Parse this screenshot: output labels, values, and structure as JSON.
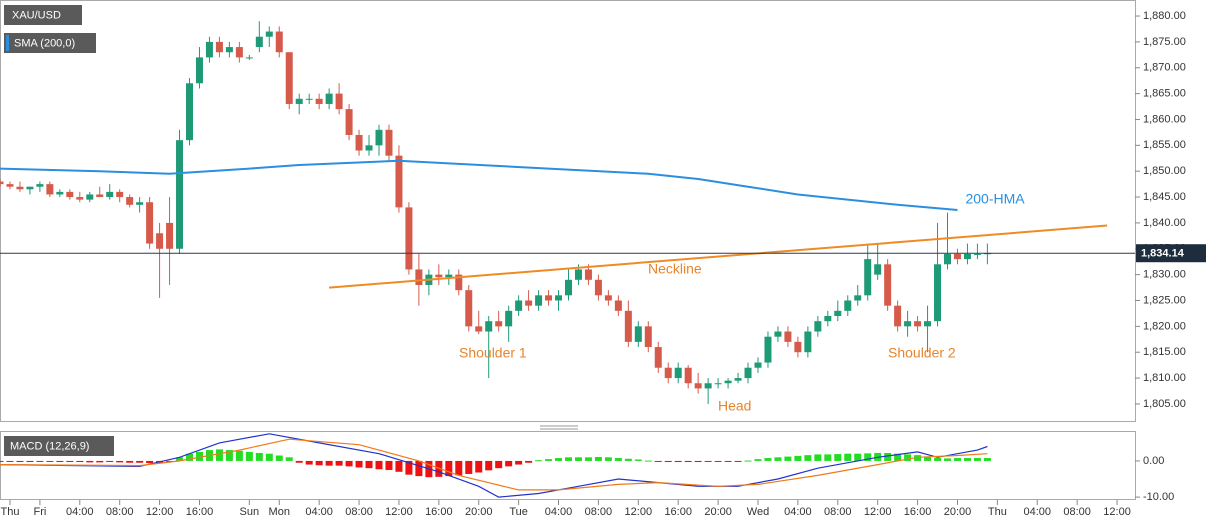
{
  "chart_data": [
    {
      "type": "candlestick",
      "title": "XAU/USD",
      "x": [
        0,
        1,
        2,
        3,
        4,
        5,
        6,
        7,
        8,
        9,
        10,
        11,
        12,
        13,
        14,
        15,
        16,
        17,
        18,
        19,
        20,
        21,
        22,
        23,
        24,
        25,
        26,
        27,
        28,
        29,
        30,
        31,
        32,
        33,
        34,
        35,
        36,
        37,
        38,
        39,
        40,
        41,
        42,
        43,
        44,
        45,
        46,
        47,
        48,
        49,
        50,
        51,
        52,
        53,
        54,
        55,
        56,
        57,
        58,
        59,
        60,
        61,
        62,
        63,
        64,
        65,
        66,
        67,
        68,
        69,
        70,
        71,
        72,
        73,
        74,
        75,
        76,
        77,
        78,
        79,
        80,
        81,
        82,
        83,
        84,
        85,
        86,
        87,
        88,
        89,
        90,
        91,
        92,
        93,
        94,
        95,
        96,
        97,
        98,
        99
      ],
      "open": [
        1848,
        1847.5,
        1847,
        1846.5,
        1847,
        1847.5,
        1845.5,
        1846,
        1845,
        1844.5,
        1845.5,
        1845,
        1846,
        1845,
        1843.5,
        1844,
        1838,
        1840,
        1835,
        1856,
        1867,
        1872,
        1875,
        1873,
        1874,
        1872,
        1874,
        1876,
        1877,
        1873,
        1863,
        1864,
        1864,
        1863,
        1865,
        1862,
        1857,
        1854,
        1855,
        1858,
        1853,
        1843,
        1831,
        1828,
        1830,
        1829.5,
        1830,
        1827,
        1820,
        1819,
        1821,
        1820,
        1823,
        1825,
        1824,
        1826,
        1825,
        1826,
        1829,
        1831,
        1829,
        1826,
        1825,
        1823,
        1817,
        1820,
        1816,
        1812,
        1810,
        1812,
        1809,
        1808,
        1809,
        1809,
        1809.5,
        1810,
        1812,
        1813,
        1818,
        1819,
        1817,
        1815,
        1819,
        1821,
        1822,
        1823,
        1825,
        1826,
        1830,
        1832,
        1824,
        1820,
        1821,
        1820,
        1821,
        1832,
        1834,
        1833,
        1834,
        1834
      ],
      "high": [
        1848.5,
        1848,
        1848,
        1847,
        1848,
        1848,
        1846.5,
        1846.5,
        1846,
        1846,
        1847,
        1847.5,
        1846.5,
        1845.5,
        1845,
        1845,
        1840,
        1845,
        1858,
        1868,
        1874,
        1876,
        1876,
        1875,
        1875,
        1872.5,
        1879,
        1878,
        1878,
        1873,
        1865,
        1865,
        1865,
        1866,
        1867,
        1863,
        1858,
        1857,
        1859,
        1859,
        1855,
        1844,
        1834,
        1831,
        1832,
        1831,
        1831,
        1828,
        1823,
        1822,
        1823,
        1824,
        1826,
        1827,
        1827,
        1827,
        1827,
        1831,
        1832,
        1832,
        1830,
        1827,
        1826,
        1825,
        1821,
        1821,
        1817,
        1813,
        1813,
        1812.5,
        1811,
        1810,
        1810,
        1810,
        1811,
        1813,
        1814,
        1819,
        1820,
        1820,
        1818,
        1820,
        1822,
        1823,
        1825,
        1826,
        1828,
        1836,
        1836,
        1833,
        1825,
        1823,
        1822,
        1824,
        1840,
        1842,
        1835,
        1836,
        1836,
        1836
      ],
      "low": [
        1847,
        1846.5,
        1846,
        1845.5,
        1846,
        1845,
        1845,
        1844.5,
        1844,
        1844,
        1845,
        1844.5,
        1844,
        1843,
        1842,
        1835,
        1825.5,
        1828,
        1834,
        1855,
        1866,
        1871,
        1872,
        1872,
        1871,
        1871.5,
        1873,
        1874,
        1872,
        1862,
        1861,
        1863,
        1862,
        1862,
        1861,
        1856,
        1853,
        1853,
        1853,
        1852,
        1842,
        1830,
        1824,
        1826,
        1828,
        1828,
        1826,
        1819,
        1818.5,
        1810,
        1819,
        1817,
        1822,
        1823,
        1823,
        1824,
        1823,
        1825,
        1828,
        1828,
        1825,
        1824,
        1822,
        1816,
        1816,
        1815,
        1811,
        1809,
        1809,
        1808,
        1807,
        1805,
        1808,
        1808,
        1809,
        1809,
        1811,
        1812,
        1817,
        1816,
        1814,
        1814,
        1818,
        1820,
        1821,
        1822,
        1824,
        1825,
        1829,
        1823,
        1819,
        1818,
        1819,
        1815,
        1820,
        1831,
        1832,
        1832,
        1833,
        1832
      ],
      "close": [
        1847.5,
        1847,
        1846.5,
        1847,
        1847.5,
        1845.5,
        1846,
        1845,
        1844.5,
        1845.5,
        1845,
        1846,
        1845,
        1843.5,
        1844,
        1836,
        1835,
        1835,
        1856,
        1867,
        1872,
        1875,
        1873,
        1874,
        1872,
        1872,
        1876,
        1877,
        1873,
        1863,
        1864,
        1864,
        1863,
        1865,
        1862,
        1857,
        1854,
        1855,
        1858,
        1853,
        1843,
        1831,
        1828,
        1830,
        1829.5,
        1830,
        1827,
        1820,
        1819,
        1821,
        1820,
        1823,
        1825,
        1824,
        1826,
        1825,
        1826,
        1829,
        1831,
        1829,
        1826,
        1825,
        1823,
        1817,
        1820,
        1816,
        1812,
        1810,
        1812,
        1809,
        1808,
        1809,
        1809,
        1809.5,
        1810,
        1812,
        1813,
        1818,
        1819,
        1817,
        1815,
        1819,
        1821,
        1822,
        1823,
        1825,
        1826,
        1833,
        1832,
        1824,
        1820,
        1821,
        1820,
        1821,
        1832,
        1834,
        1833,
        1834,
        1834,
        1834.14
      ],
      "up_color": "#1f9a76",
      "down_color": "#d65a4a",
      "last_price_label": "1,834.14",
      "xlim": [
        0,
        113.8
      ],
      "ylim": [
        1801.7,
        1883.1
      ],
      "yticks": [
        {
          "value": 1805,
          "label": "1,805.00"
        },
        {
          "value": 1810,
          "label": "1,810.00"
        },
        {
          "value": 1815,
          "label": "1,815.00"
        },
        {
          "value": 1820,
          "label": "1,820.00"
        },
        {
          "value": 1825,
          "label": "1,825.00"
        },
        {
          "value": 1830,
          "label": "1,830.00"
        },
        {
          "value": 1835,
          "label": "1,835.00"
        },
        {
          "value": 1840,
          "label": "1,840.00"
        },
        {
          "value": 1845,
          "label": "1,845.00"
        },
        {
          "value": 1850,
          "label": "1,850.00"
        },
        {
          "value": 1855,
          "label": "1,855.00"
        },
        {
          "value": 1860,
          "label": "1,860.00"
        },
        {
          "value": 1865,
          "label": "1,865.00"
        },
        {
          "value": 1870,
          "label": "1,870.00"
        },
        {
          "value": 1875,
          "label": "1,875.00"
        },
        {
          "value": 1880,
          "label": "1,880.00"
        }
      ],
      "xticks": [
        {
          "value": 1,
          "label": "Thu"
        },
        {
          "value": 4,
          "label": "Fri"
        },
        {
          "value": 8,
          "label": "04:00"
        },
        {
          "value": 12,
          "label": "08:00"
        },
        {
          "value": 16,
          "label": "12:00"
        },
        {
          "value": 20,
          "label": "16:00"
        },
        {
          "value": 25,
          "label": "Sun"
        },
        {
          "value": 28,
          "label": "Mon"
        },
        {
          "value": 32,
          "label": "04:00"
        },
        {
          "value": 36,
          "label": "08:00"
        },
        {
          "value": 40,
          "label": "12:00"
        },
        {
          "value": 44,
          "label": "16:00"
        },
        {
          "value": 48,
          "label": "20:00"
        },
        {
          "value": 52,
          "label": "Tue"
        },
        {
          "value": 56,
          "label": "04:00"
        },
        {
          "value": 60,
          "label": "08:00"
        },
        {
          "value": 64,
          "label": "12:00"
        },
        {
          "value": 68,
          "label": "16:00"
        },
        {
          "value": 72,
          "label": "20:00"
        },
        {
          "value": 76,
          "label": "Wed"
        },
        {
          "value": 80,
          "label": "04:00"
        },
        {
          "value": 84,
          "label": "08:00"
        },
        {
          "value": 88,
          "label": "12:00"
        },
        {
          "value": 92,
          "label": "16:00"
        },
        {
          "value": 96,
          "label": "20:00"
        },
        {
          "value": 100,
          "label": "Thu"
        },
        {
          "value": 104,
          "label": "04:00"
        },
        {
          "value": 108,
          "label": "08:00"
        },
        {
          "value": 112,
          "label": "12:00"
        }
      ],
      "series": [
        {
          "name": "SMA (200,0)",
          "label": "200-HMA",
          "color": "#2a8fe0",
          "x": [
            0,
            10,
            17,
            25,
            30,
            40,
            45,
            55,
            65,
            70,
            75,
            80,
            90,
            96
          ],
          "values": [
            1850.5,
            1850,
            1849.5,
            1850.5,
            1851.2,
            1852,
            1851.5,
            1850.5,
            1849.5,
            1848.5,
            1847,
            1845.5,
            1843.5,
            1842.5
          ]
        }
      ],
      "trendline": {
        "name": "Neckline",
        "color": "#f08a24",
        "x": [
          33,
          111
        ],
        "values": [
          1827.5,
          1839.5
        ]
      },
      "annotations": [
        "Shoulder 1",
        "Head",
        "Shoulder 2"
      ]
    },
    {
      "type": "macd",
      "title": "MACD (12,26,9)",
      "x": [
        0,
        1,
        2,
        3,
        4,
        5,
        6,
        7,
        8,
        9,
        10,
        11,
        12,
        13,
        14,
        15,
        16,
        17,
        18,
        19,
        20,
        21,
        22,
        23,
        24,
        25,
        26,
        27,
        28,
        29,
        30,
        31,
        32,
        33,
        34,
        35,
        36,
        37,
        38,
        39,
        40,
        41,
        42,
        43,
        44,
        45,
        46,
        47,
        48,
        49,
        50,
        51,
        52,
        53,
        54,
        55,
        56,
        57,
        58,
        59,
        60,
        61,
        62,
        63,
        64,
        65,
        66,
        67,
        68,
        69,
        70,
        71,
        72,
        73,
        74,
        75,
        76,
        77,
        78,
        79,
        80,
        81,
        82,
        83,
        84,
        85,
        86,
        87,
        88,
        89,
        90,
        91,
        92,
        93,
        94,
        95,
        96,
        97,
        98,
        99
      ],
      "histogram": [
        -0.2,
        -0.2,
        -0.3,
        -0.3,
        -0.2,
        -0.2,
        -0.3,
        -0.3,
        -0.3,
        -0.4,
        -0.4,
        -0.3,
        -0.4,
        -0.5,
        -0.5,
        -0.6,
        -0.5,
        -0.2,
        1,
        2,
        2.5,
        3,
        3.2,
        3,
        2.8,
        2.5,
        2.2,
        2,
        1.5,
        1,
        -0.5,
        -1,
        -1.2,
        -1.3,
        -1.3,
        -1.5,
        -1.8,
        -2,
        -2.3,
        -2.5,
        -3,
        -3.8,
        -4.2,
        -4.5,
        -4.4,
        -4.2,
        -4,
        -3.6,
        -3.2,
        -2.6,
        -2,
        -1.5,
        -1,
        -0.5,
        0.2,
        0.5,
        0.8,
        1,
        1,
        1,
        1.1,
        1,
        0.8,
        0.6,
        0.4,
        0.1,
        -0.2,
        -0.3,
        -0.3,
        -0.3,
        -0.3,
        -0.2,
        -0.2,
        -0.2,
        -0.1,
        0.1,
        0.5,
        0.8,
        1,
        1.2,
        1.4,
        1.6,
        1.8,
        1.8,
        1.9,
        2,
        2,
        2.1,
        2.2,
        2.2,
        2,
        1.8,
        1.6,
        1.2,
        0.8,
        0.7,
        0.8,
        0.8,
        0.8,
        0.8
      ],
      "up_color": "#22dd22",
      "down_color": "#ee1111",
      "ylim": [
        -10.8,
        8
      ],
      "yticks": [
        {
          "value": 0,
          "label": "0.00"
        },
        {
          "value": -10,
          "label": "-10.00"
        }
      ],
      "series": [
        {
          "color": "#2233cc",
          "x": [
            0,
            14,
            18,
            22,
            27,
            32,
            38,
            44,
            48,
            50,
            54,
            58,
            62,
            66,
            70,
            74,
            78,
            82,
            88,
            92,
            94,
            98,
            99
          ],
          "values": [
            -1,
            -1.5,
            1,
            5,
            7.5,
            5,
            2,
            -3,
            -7,
            -10,
            -9,
            -7,
            -5,
            -6,
            -7,
            -7,
            -5,
            -2,
            1,
            2.5,
            1,
            3,
            4
          ]
        },
        {
          "color": "#f07a1a",
          "x": [
            0,
            14,
            18,
            24,
            29,
            36,
            42,
            46,
            52,
            56,
            62,
            66,
            72,
            76,
            82,
            88,
            92,
            96,
            99
          ],
          "values": [
            -1,
            -1.3,
            0,
            3,
            6,
            4.5,
            0,
            -4,
            -8,
            -8,
            -6.5,
            -6,
            -7,
            -6.5,
            -4,
            -1,
            1,
            1.5,
            2
          ]
        }
      ]
    }
  ]
}
